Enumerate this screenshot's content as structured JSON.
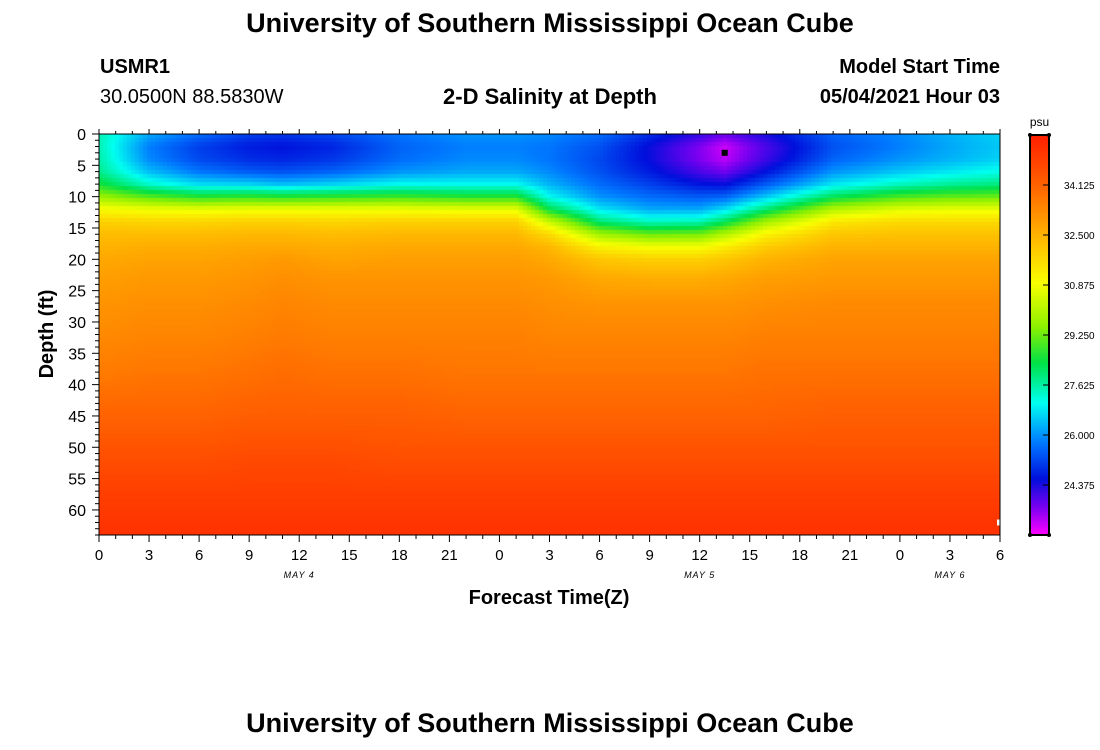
{
  "page": {
    "title_top": "University of Southern Mississippi Ocean Cube",
    "title_bottom": "University of Southern Mississippi Ocean Cube",
    "station": "USMR1",
    "coords": "30.0500N  88.5830W",
    "model_label": "Model Start Time",
    "model_time": "05/04/2021 Hour 03"
  },
  "chart_data": {
    "type": "heatmap",
    "title": "2-D Salinity at Depth",
    "xlabel": "Forecast Time(Z)",
    "ylabel": "Depth (ft)",
    "x_range_hours": [
      0,
      54
    ],
    "y_range_ft": [
      0,
      64
    ],
    "x_ticks": [
      "0",
      "3",
      "6",
      "9",
      "12",
      "15",
      "18",
      "21",
      "0",
      "3",
      "6",
      "9",
      "12",
      "15",
      "18",
      "21",
      "0",
      "3",
      "6"
    ],
    "y_ticks": [
      "0",
      "5",
      "10",
      "15",
      "20",
      "25",
      "30",
      "35",
      "40",
      "45",
      "50",
      "55",
      "60"
    ],
    "y_tick_values": [
      0,
      5,
      10,
      15,
      20,
      25,
      30,
      35,
      40,
      45,
      50,
      55,
      60
    ],
    "date_labels": [
      {
        "label": "MAY 4",
        "hour": 12
      },
      {
        "label": "MAY 5",
        "hour": 36
      },
      {
        "label": "MAY 6",
        "hour": 51
      }
    ],
    "colorbar": {
      "unit": "psu",
      "min": 22.75,
      "max": 35.75,
      "tick_labels": [
        "34.125",
        "32.500",
        "30.875",
        "29.250",
        "27.625",
        "26.000",
        "24.375"
      ],
      "tick_values": [
        34.125,
        32.5,
        30.875,
        29.25,
        27.625,
        26.0,
        24.375
      ]
    },
    "profile_hours": [
      0,
      3,
      6,
      9,
      11,
      14,
      18,
      22,
      25,
      27,
      30,
      33,
      36,
      37.5,
      40,
      44,
      48,
      51,
      54
    ],
    "profile_depths_ft": [
      0,
      2,
      4,
      6,
      8,
      10,
      12,
      14,
      16,
      18,
      20,
      23,
      27,
      32,
      38,
      45,
      52,
      58,
      64
    ],
    "salinity_psu": [
      [
        27.5,
        27.5,
        27.6,
        27.8,
        28.5,
        29.7,
        31.0,
        31.9,
        32.3,
        32.5,
        32.7,
        32.9,
        33.1,
        33.3,
        33.6,
        34.1,
        34.6,
        35.0,
        35.3
      ],
      [
        26.2,
        25.8,
        25.9,
        26.4,
        27.3,
        29.0,
        30.8,
        31.8,
        32.3,
        32.6,
        32.8,
        33.0,
        33.2,
        33.4,
        33.7,
        34.1,
        34.6,
        35.0,
        35.3
      ],
      [
        25.6,
        25.1,
        25.2,
        25.7,
        26.7,
        28.6,
        30.7,
        31.8,
        32.3,
        32.6,
        32.8,
        33.0,
        33.2,
        33.4,
        33.7,
        34.1,
        34.6,
        35.0,
        35.3
      ],
      [
        25.1,
        24.7,
        24.9,
        25.4,
        26.6,
        28.7,
        30.8,
        31.9,
        32.4,
        32.7,
        32.9,
        33.1,
        33.3,
        33.5,
        33.8,
        34.2,
        34.7,
        35.0,
        35.3
      ],
      [
        25.0,
        24.6,
        24.8,
        25.3,
        26.4,
        28.6,
        30.8,
        31.9,
        32.4,
        32.7,
        33.0,
        33.2,
        33.4,
        33.6,
        33.9,
        34.2,
        34.7,
        35.0,
        35.3
      ],
      [
        25.2,
        24.8,
        25.0,
        25.5,
        26.6,
        28.7,
        30.8,
        31.8,
        32.3,
        32.6,
        32.8,
        33.1,
        33.3,
        33.5,
        33.8,
        34.2,
        34.7,
        35.0,
        35.3
      ],
      [
        25.7,
        25.5,
        25.6,
        26.0,
        27.0,
        28.8,
        30.8,
        31.9,
        32.4,
        32.7,
        32.9,
        33.1,
        33.3,
        33.5,
        33.8,
        34.2,
        34.6,
        35.0,
        35.3
      ],
      [
        26.0,
        25.8,
        25.9,
        26.2,
        27.0,
        28.6,
        30.7,
        31.9,
        32.4,
        32.7,
        32.9,
        33.1,
        33.3,
        33.5,
        33.7,
        34.1,
        34.6,
        35.0,
        35.3
      ],
      [
        26.0,
        25.8,
        25.9,
        26.2,
        27.0,
        28.6,
        30.7,
        31.9,
        32.4,
        32.7,
        32.9,
        33.1,
        33.3,
        33.5,
        33.7,
        34.1,
        34.6,
        35.0,
        35.3
      ],
      [
        25.9,
        25.7,
        25.7,
        25.9,
        26.3,
        27.0,
        28.3,
        30.3,
        31.7,
        32.4,
        32.7,
        33.0,
        33.2,
        33.4,
        33.7,
        34.1,
        34.6,
        35.0,
        35.3
      ],
      [
        25.6,
        25.3,
        25.2,
        25.3,
        25.6,
        26.0,
        26.8,
        28.0,
        29.8,
        31.2,
        32.1,
        32.7,
        33.1,
        33.4,
        33.7,
        34.1,
        34.6,
        35.0,
        35.3
      ],
      [
        24.9,
        24.5,
        24.5,
        24.7,
        25.1,
        25.6,
        26.2,
        27.4,
        29.2,
        30.9,
        31.9,
        32.6,
        33.1,
        33.4,
        33.7,
        34.1,
        34.6,
        35.0,
        35.3
      ],
      [
        24.2,
        23.6,
        23.6,
        24.0,
        24.6,
        25.4,
        26.2,
        27.5,
        29.3,
        30.9,
        31.9,
        32.6,
        33.1,
        33.4,
        33.7,
        34.1,
        34.6,
        35.0,
        35.3
      ],
      [
        23.8,
        23.1,
        23.2,
        23.7,
        24.5,
        25.5,
        26.7,
        28.2,
        30.0,
        31.3,
        32.1,
        32.7,
        33.1,
        33.4,
        33.7,
        34.1,
        34.6,
        35.0,
        35.3
      ],
      [
        24.4,
        24.0,
        24.1,
        24.6,
        25.4,
        26.5,
        28.0,
        29.8,
        31.2,
        32.0,
        32.5,
        32.9,
        33.2,
        33.5,
        33.8,
        34.1,
        34.6,
        35.0,
        35.3
      ],
      [
        25.5,
        25.3,
        25.5,
        26.0,
        26.8,
        28.2,
        30.0,
        31.4,
        32.1,
        32.5,
        32.8,
        33.0,
        33.3,
        33.5,
        33.8,
        34.2,
        34.6,
        35.0,
        35.3
      ],
      [
        25.9,
        25.8,
        26.0,
        26.5,
        27.4,
        28.9,
        30.6,
        31.7,
        32.2,
        32.5,
        32.8,
        33.0,
        33.3,
        33.5,
        33.8,
        34.2,
        34.6,
        35.0,
        35.3
      ],
      [
        26.3,
        26.2,
        26.3,
        26.8,
        27.7,
        29.1,
        30.7,
        31.7,
        32.2,
        32.5,
        32.8,
        33.0,
        33.3,
        33.5,
        33.8,
        34.2,
        34.6,
        35.0,
        35.3
      ],
      [
        26.6,
        26.5,
        26.6,
        27.1,
        27.9,
        29.2,
        30.7,
        31.7,
        32.2,
        32.5,
        32.8,
        33.0,
        33.3,
        33.5,
        33.8,
        34.2,
        34.6,
        35.0,
        35.3
      ]
    ],
    "markers": [
      {
        "type": "point",
        "hour": 37.5,
        "depth_ft": 3,
        "color": "#000000"
      },
      {
        "type": "point",
        "hour": 54,
        "depth_ft": 62,
        "color": "#ffffff"
      }
    ]
  }
}
